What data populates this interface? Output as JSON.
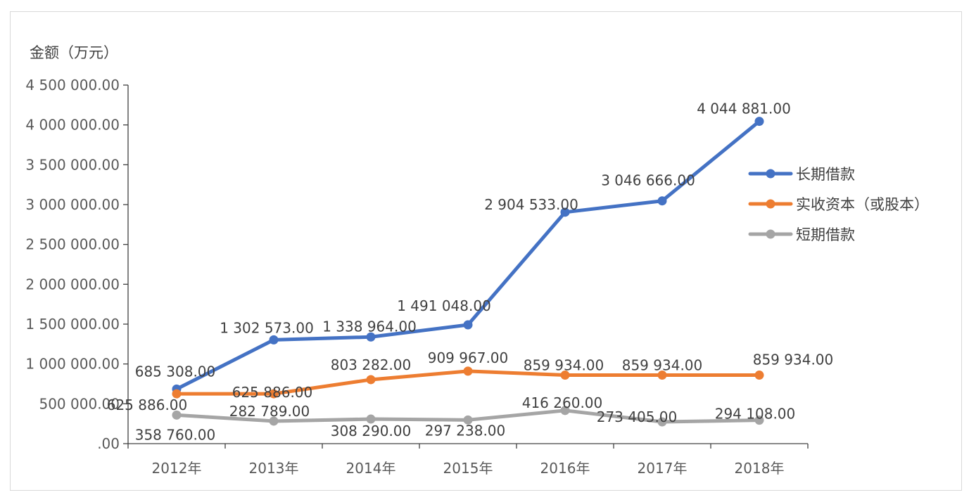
{
  "chart_data": {
    "type": "line",
    "ylabel": "金额（万元）",
    "xlabel": "",
    "categories": [
      "2012年",
      "2013年",
      "2014年",
      "2015年",
      "2016年",
      "2017年",
      "2018年"
    ],
    "ylim": [
      0,
      4500000
    ],
    "ytick_values": [
      0,
      500000,
      1000000,
      1500000,
      2000000,
      2500000,
      3000000,
      3500000,
      4000000,
      4500000
    ],
    "ytick_labels": [
      ".00",
      "500 000.00",
      "1 000 000.00",
      "1 500 000.00",
      "2 000 000.00",
      "2 500 000.00",
      "3 000 000.00",
      "3 500 000.00",
      "4 000 000.00",
      "4 500 000.00"
    ],
    "legend_position": "right",
    "series": [
      {
        "name": "长期借款",
        "color": "#4472c4",
        "values": [
          685308,
          1302573,
          1338964,
          1491048,
          2904533,
          3046666,
          4044881
        ],
        "labels": [
          "685 308.00",
          "1 302 573.00",
          "1 338 964.00",
          "1 491 048.00",
          "2 904 533.00",
          "3 046 666.00",
          "4 044 881.00"
        ]
      },
      {
        "name": "实收资本（或股本）",
        "color": "#ed7d31",
        "values": [
          625886,
          625886,
          803282,
          909967,
          859934,
          859934,
          859934
        ],
        "labels": [
          "625 886.00",
          "625 886.00",
          "803 282.00",
          "909 967.00",
          "859 934.00",
          "859 934.00",
          "859 934.00"
        ]
      },
      {
        "name": "短期借款",
        "color": "#a5a5a5",
        "values": [
          358760,
          282789,
          308290,
          297238,
          416260,
          273405,
          294108
        ],
        "labels": [
          "358 760.00",
          "282 789.00",
          "308 290.00",
          "297 238.00",
          "416 260.00",
          "273 405.00",
          "294 108.00"
        ]
      }
    ]
  }
}
